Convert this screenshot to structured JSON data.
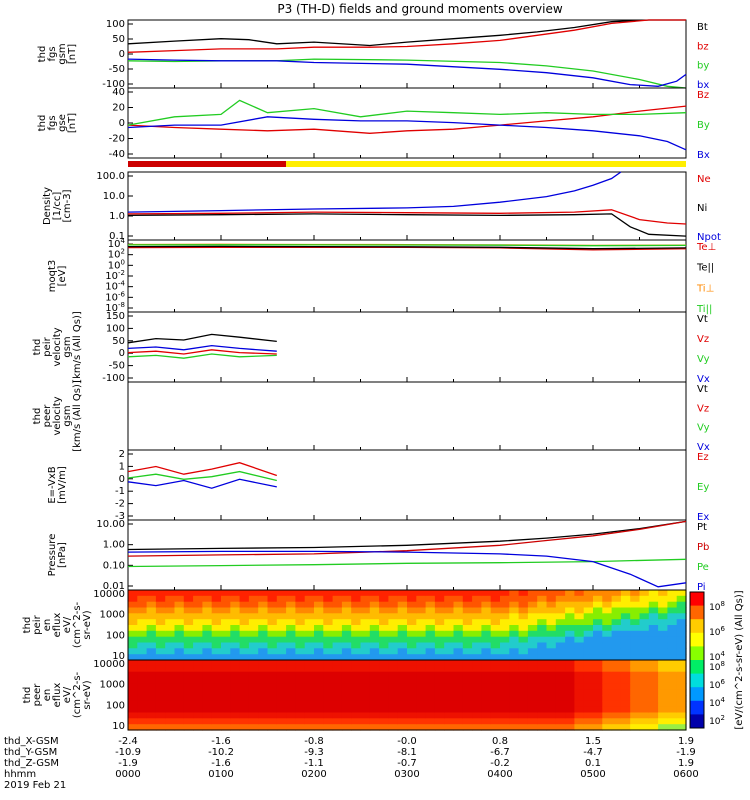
{
  "title": "P3 (TH-D) fields and ground moments overview",
  "colors": {
    "black": "#000000",
    "red": "#e00000",
    "green": "#22cc22",
    "blue": "#0000dd",
    "yellow": "#ffee00",
    "orange": "#ff8800",
    "darkred": "#cc0000",
    "lightgreen": "#66ff66"
  },
  "chart_data": [
    {
      "id": "p1",
      "type": "line",
      "ylabel": [
        "thd",
        "fgs",
        "gsm",
        "[nT]"
      ],
      "yticks": [
        "100",
        "50",
        "0",
        "-50",
        "-100"
      ],
      "ylim": [
        -100,
        100
      ],
      "legend": [
        {
          "label": "Bt",
          "color": "black"
        },
        {
          "label": "bz",
          "color": "red"
        },
        {
          "label": "by",
          "color": "green"
        },
        {
          "label": "bx",
          "color": "blue"
        }
      ],
      "series": [
        {
          "name": "Bt",
          "color": "black",
          "x": [
            0,
            0.5,
            1,
            1.3,
            1.6,
            2,
            2.6,
            3,
            3.5,
            4,
            4.4,
            4.8,
            5.2,
            5.6,
            6
          ],
          "values": [
            30,
            38,
            45,
            42,
            30,
            35,
            25,
            35,
            45,
            55,
            65,
            78,
            95,
            100,
            100
          ]
        },
        {
          "name": "bz",
          "color": "red",
          "x": [
            0,
            0.5,
            1,
            1.6,
            2,
            2.6,
            3,
            3.5,
            4,
            4.4,
            4.8,
            5.2,
            5.6,
            6
          ],
          "values": [
            5,
            10,
            15,
            15,
            20,
            20,
            22,
            30,
            40,
            55,
            70,
            90,
            100,
            100
          ]
        },
        {
          "name": "by",
          "color": "green",
          "x": [
            0,
            0.5,
            1,
            1.6,
            2,
            3,
            4,
            4.5,
            5,
            5.5,
            5.8,
            6
          ],
          "values": [
            -20,
            -22,
            -20,
            -20,
            -15,
            -18,
            -25,
            -35,
            -50,
            -75,
            -95,
            -100
          ]
        },
        {
          "name": "bx",
          "color": "blue",
          "x": [
            0,
            0.5,
            1,
            1.6,
            2,
            3,
            4,
            4.5,
            5,
            5.4,
            5.7,
            5.9,
            6
          ],
          "values": [
            -15,
            -18,
            -20,
            -20,
            -25,
            -30,
            -45,
            -55,
            -70,
            -90,
            -95,
            -80,
            -60
          ]
        }
      ]
    },
    {
      "id": "p2",
      "type": "line",
      "ylabel": [
        "thd",
        "fgs",
        "gse",
        "[nT]"
      ],
      "yticks": [
        "40",
        "20",
        "0",
        "-20",
        "-40"
      ],
      "ylim": [
        -45,
        40
      ],
      "legend": [
        {
          "label": "Bz",
          "color": "red"
        },
        {
          "label": "By",
          "color": "green"
        },
        {
          "label": "Bx",
          "color": "blue"
        }
      ],
      "series": [
        {
          "name": "Bz",
          "color": "red",
          "x": [
            0,
            0.5,
            1,
            1.5,
            2,
            2.6,
            3,
            3.5,
            4,
            4.5,
            5,
            5.5,
            6
          ],
          "values": [
            -5,
            -8,
            -10,
            -12,
            -10,
            -15,
            -12,
            -10,
            -5,
            0,
            5,
            12,
            18
          ]
        },
        {
          "name": "By",
          "color": "green",
          "x": [
            0,
            0.5,
            1,
            1.2,
            1.5,
            2,
            2.5,
            3,
            3.5,
            4,
            4.5,
            5,
            5.5,
            6
          ],
          "values": [
            -5,
            5,
            8,
            25,
            10,
            15,
            5,
            12,
            10,
            8,
            10,
            8,
            8,
            10
          ]
        },
        {
          "name": "Bx",
          "color": "blue",
          "x": [
            0,
            0.5,
            1,
            1.5,
            2,
            2.5,
            3,
            3.5,
            4,
            4.5,
            5,
            5.5,
            5.8,
            6
          ],
          "values": [
            -8,
            -5,
            -5,
            5,
            2,
            0,
            0,
            -2,
            -5,
            -8,
            -12,
            -18,
            -25,
            -35
          ]
        }
      ]
    },
    {
      "id": "p3",
      "type": "line",
      "ylabel": [
        "Density",
        "[1/cc]",
        "[cm-3]"
      ],
      "yticks": [
        "100.0",
        "10.0",
        "1.0",
        "0.1"
      ],
      "yscale": "log",
      "ylim": [
        0.05,
        200
      ],
      "legend": [
        {
          "label": "Ne",
          "color": "red"
        },
        {
          "label": "Ni",
          "color": "black"
        },
        {
          "label": "Npot",
          "color": "blue"
        }
      ],
      "series": [
        {
          "name": "Ne",
          "color": "red",
          "x": [
            0,
            1,
            2,
            3,
            4,
            4.8,
            5.2,
            5.5,
            5.8,
            6
          ],
          "values": [
            1.2,
            1.3,
            1.5,
            1.4,
            1.3,
            1.5,
            2,
            0.6,
            0.4,
            0.35
          ]
        },
        {
          "name": "Ni",
          "color": "black",
          "x": [
            0,
            1,
            2,
            3,
            4,
            4.8,
            5.2,
            5.4,
            5.6,
            6
          ],
          "values": [
            1.0,
            1.1,
            1.2,
            1.1,
            1.0,
            1.1,
            1.2,
            0.25,
            0.1,
            0.08
          ]
        },
        {
          "name": "Npot",
          "color": "blue",
          "x": [
            0,
            1,
            2,
            3,
            3.5,
            4,
            4.5,
            4.8,
            5,
            5.2,
            5.3
          ],
          "values": [
            1.5,
            1.8,
            2.2,
            2.5,
            3,
            5,
            10,
            20,
            40,
            90,
            200
          ]
        }
      ]
    },
    {
      "id": "p4",
      "type": "line",
      "ylabel": [
        "moqt3",
        "[eV]"
      ],
      "yticks": [
        "10^4",
        "10^2",
        "10^0",
        "10^-2",
        "10^-4",
        "10^-6",
        "10^-8"
      ],
      "yscale": "log",
      "ylim": [
        1e-09,
        20000
      ],
      "legend": [
        {
          "label": "Te⊥",
          "color": "red"
        },
        {
          "label": "Te||",
          "color": "black"
        },
        {
          "label": "Ti⊥",
          "color": "orange"
        },
        {
          "label": "Ti||",
          "color": "green"
        }
      ],
      "series": [
        {
          "name": "Te⊥",
          "color": "red",
          "x": [
            0,
            1,
            2,
            3,
            4,
            5,
            6
          ],
          "values": [
            800,
            900,
            900,
            850,
            700,
            300,
            500
          ]
        },
        {
          "name": "Te||",
          "color": "black",
          "x": [
            0,
            1,
            2,
            3,
            4,
            5,
            6
          ],
          "values": [
            1200,
            1300,
            1200,
            1100,
            900,
            500,
            700
          ]
        },
        {
          "name": "Ti⊥",
          "color": "orange",
          "x": [
            0,
            1,
            2,
            3,
            4,
            5,
            6
          ],
          "values": [
            3000,
            3200,
            3000,
            2800,
            2500,
            2000,
            2200
          ]
        },
        {
          "name": "Ti||",
          "color": "green",
          "x": [
            0,
            1,
            2,
            3,
            4,
            5,
            6
          ],
          "values": [
            2500,
            2600,
            2500,
            2400,
            2200,
            1800,
            2000
          ]
        }
      ]
    },
    {
      "id": "p5",
      "type": "line",
      "ylabel": [
        "thd",
        "peir",
        "velocity",
        "gsm",
        "[km/s (All Qs)]"
      ],
      "yticks": [
        "150",
        "100",
        "50",
        "0",
        "-50",
        "-100"
      ],
      "ylim": [
        -100,
        150
      ],
      "legend": [
        {
          "label": "Vt",
          "color": "black"
        },
        {
          "label": "Vz",
          "color": "red"
        },
        {
          "label": "Vy",
          "color": "green"
        },
        {
          "label": "Vx",
          "color": "blue"
        }
      ],
      "series": [
        {
          "name": "Vt",
          "color": "black",
          "x": [
            0,
            0.3,
            0.6,
            0.9,
            1.2,
            1.6
          ],
          "values": [
            40,
            55,
            50,
            70,
            60,
            45
          ]
        },
        {
          "name": "Vz",
          "color": "red",
          "x": [
            0,
            0.3,
            0.6,
            0.9,
            1.2,
            1.6
          ],
          "values": [
            5,
            10,
            0,
            15,
            5,
            0
          ]
        },
        {
          "name": "Vy",
          "color": "green",
          "x": [
            0,
            0.3,
            0.6,
            0.9,
            1.2,
            1.6
          ],
          "values": [
            -10,
            -5,
            -15,
            0,
            -10,
            -5
          ]
        },
        {
          "name": "Vx",
          "color": "blue",
          "x": [
            0,
            0.3,
            0.6,
            0.9,
            1.2,
            1.6
          ],
          "values": [
            20,
            25,
            15,
            30,
            20,
            10
          ]
        }
      ]
    },
    {
      "id": "p6",
      "type": "line",
      "ylabel": [
        "thd",
        "peer",
        "velocity",
        "gsm",
        "[km/s (All Qs)]"
      ],
      "yticks": [],
      "ylim": [
        -100,
        100
      ],
      "legend": [
        {
          "label": "Vt",
          "color": "black"
        },
        {
          "label": "Vz",
          "color": "red"
        },
        {
          "label": "Vy",
          "color": "green"
        },
        {
          "label": "Vx",
          "color": "blue"
        }
      ],
      "series": []
    },
    {
      "id": "p7",
      "type": "line",
      "ylabel": [
        "E=-VxB",
        "[mV/m]"
      ],
      "yticks": [
        "2",
        "1",
        "0",
        "-1",
        "-2",
        "-3"
      ],
      "ylim": [
        -3,
        2.5
      ],
      "legend": [
        {
          "label": "Ez",
          "color": "red"
        },
        {
          "label": "Ey",
          "color": "green"
        },
        {
          "label": "Ex",
          "color": "blue"
        }
      ],
      "series": [
        {
          "name": "Ez",
          "color": "red",
          "x": [
            0,
            0.3,
            0.6,
            0.9,
            1.2,
            1.6
          ],
          "values": [
            0.8,
            1.2,
            0.6,
            1.0,
            1.5,
            0.5
          ]
        },
        {
          "name": "Ey",
          "color": "green",
          "x": [
            0,
            0.3,
            0.6,
            0.9,
            1.2,
            1.6
          ],
          "values": [
            0.3,
            0.6,
            0.2,
            0.4,
            0.8,
            0.1
          ]
        },
        {
          "name": "Ex",
          "color": "blue",
          "x": [
            0,
            0.3,
            0.6,
            0.9,
            1.2,
            1.6
          ],
          "values": [
            0,
            -0.3,
            0.1,
            -0.5,
            0.2,
            -0.4
          ]
        }
      ]
    },
    {
      "id": "p8",
      "type": "line",
      "ylabel": [
        "Pressure",
        "[nPa]"
      ],
      "yticks": [
        "10.00",
        "1.00",
        "0.10",
        "0.01"
      ],
      "yscale": "log",
      "ylim": [
        0.004,
        30
      ],
      "legend": [
        {
          "label": "Pt",
          "color": "black"
        },
        {
          "label": "Pb",
          "color": "darkred"
        },
        {
          "label": "Pe",
          "color": "green"
        },
        {
          "label": "Pi",
          "color": "blue"
        }
      ],
      "series": [
        {
          "name": "Pt",
          "color": "black",
          "x": [
            0,
            1,
            2,
            3,
            4,
            4.5,
            5,
            5.5,
            6
          ],
          "values": [
            0.7,
            0.8,
            0.9,
            1.2,
            2,
            3,
            5,
            10,
            25
          ]
        },
        {
          "name": "Pb",
          "color": "darkred",
          "x": [
            0,
            1,
            2,
            3,
            4,
            4.5,
            5,
            5.5,
            6
          ],
          "values": [
            0.3,
            0.35,
            0.4,
            0.6,
            1.2,
            2.2,
            4,
            9,
            25
          ]
        },
        {
          "name": "Pe",
          "color": "green",
          "x": [
            0,
            1,
            2,
            3,
            4,
            5,
            6
          ],
          "values": [
            0.08,
            0.09,
            0.1,
            0.12,
            0.13,
            0.15,
            0.2
          ]
        },
        {
          "name": "Pi",
          "color": "blue",
          "x": [
            0,
            1,
            2,
            3,
            4,
            4.5,
            5,
            5.4,
            5.7,
            6
          ],
          "values": [
            0.5,
            0.55,
            0.55,
            0.5,
            0.4,
            0.3,
            0.15,
            0.03,
            0.006,
            0.01
          ]
        }
      ]
    },
    {
      "id": "p9",
      "type": "heatmap",
      "ylabel": [
        "thd",
        "peir",
        "en",
        "eflux",
        "eV/",
        "(cm^2-s-",
        "sr-eV)"
      ],
      "yticks": [
        "10000",
        "1000",
        "100",
        "10"
      ],
      "yscale": "log"
    },
    {
      "id": "p10",
      "type": "heatmap",
      "ylabel": [
        "thd",
        "peer",
        "en",
        "eflux",
        "eV/",
        "(cm^2-s-",
        "sr-eV)"
      ],
      "yticks": [
        "10000",
        "1000",
        "100",
        "10"
      ],
      "yscale": "log"
    }
  ],
  "colorbar": {
    "top": {
      "ticks": [
        "10^8",
        "10^6",
        "10^4"
      ]
    },
    "bottom": {
      "ticks": [
        "10^8",
        "10^6",
        "10^4",
        "10^2"
      ]
    },
    "label": "[eV/(cm^2-s-sr-eV) (All Qs)]"
  },
  "mode_bar": {
    "segments": [
      {
        "x0": 0,
        "x1": 1.7,
        "color": "darkred"
      },
      {
        "x0": 1.7,
        "x1": 6,
        "color": "yellow"
      }
    ]
  },
  "xaxis": {
    "rows": [
      {
        "name": "thd_X-GSM",
        "values": [
          "-2.4",
          "-1.6",
          "-0.8",
          "-0.0",
          "0.8",
          "1.5",
          "1.9"
        ]
      },
      {
        "name": "thd_Y-GSM",
        "values": [
          "-10.9",
          "-10.2",
          "-9.3",
          "-8.1",
          "-6.7",
          "-4.7",
          "-1.9"
        ]
      },
      {
        "name": "thd_Z-GSM",
        "values": [
          "-1.9",
          "-1.6",
          "-1.1",
          "-0.7",
          "-0.2",
          "0.1",
          "1.9"
        ]
      },
      {
        "name": "hhmm",
        "values": [
          "0000",
          "0100",
          "0200",
          "0300",
          "0400",
          "0500",
          "0600"
        ]
      }
    ],
    "date": "2019 Feb 21",
    "tick_hours": [
      0,
      1,
      2,
      3,
      4,
      5,
      6
    ]
  }
}
